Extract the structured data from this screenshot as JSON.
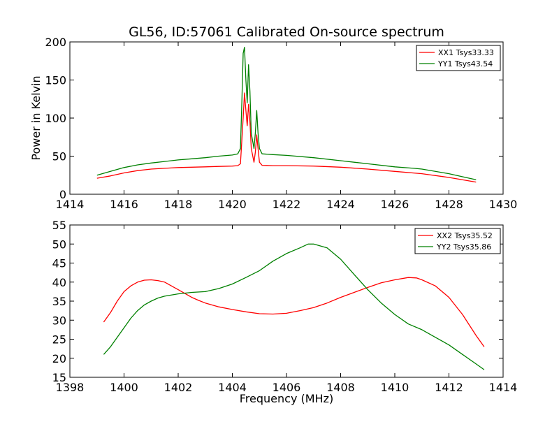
{
  "chart_data": [
    {
      "type": "line",
      "title": "GL56, ID:57061 Calibrated On-source spectrum",
      "xlabel": "",
      "ylabel": "Power in Kelvin",
      "xlim": [
        1414,
        1430
      ],
      "ylim": [
        0,
        200
      ],
      "xticks": [
        1414,
        1416,
        1418,
        1420,
        1422,
        1424,
        1426,
        1428,
        1430
      ],
      "yticks": [
        0,
        50,
        100,
        150,
        200
      ],
      "grid": false,
      "legend": "top-right",
      "colors": {
        "series1": "#ff0000",
        "series2": "#008000"
      },
      "series": [
        {
          "name": "XX1 Tsys33.33",
          "color": "#ff0000",
          "points": [
            [
              1415.0,
              21
            ],
            [
              1415.5,
              24
            ],
            [
              1416.0,
              28
            ],
            [
              1416.5,
              31
            ],
            [
              1417.0,
              33
            ],
            [
              1417.5,
              34
            ],
            [
              1418.0,
              35
            ],
            [
              1418.5,
              35.5
            ],
            [
              1419.0,
              36
            ],
            [
              1419.5,
              36.5
            ],
            [
              1420.0,
              37
            ],
            [
              1420.2,
              37.5
            ],
            [
              1420.3,
              40
            ],
            [
              1420.4,
              100
            ],
            [
              1420.45,
              133
            ],
            [
              1420.5,
              110
            ],
            [
              1420.55,
              90
            ],
            [
              1420.6,
              118
            ],
            [
              1420.65,
              95
            ],
            [
              1420.7,
              60
            ],
            [
              1420.8,
              42
            ],
            [
              1420.85,
              55
            ],
            [
              1420.9,
              78
            ],
            [
              1420.95,
              60
            ],
            [
              1421.0,
              42
            ],
            [
              1421.1,
              38
            ],
            [
              1421.5,
              37.5
            ],
            [
              1422.0,
              37.5
            ],
            [
              1423.0,
              37
            ],
            [
              1424.0,
              35.5
            ],
            [
              1425.0,
              33
            ],
            [
              1426.0,
              30
            ],
            [
              1427.0,
              27
            ],
            [
              1428.0,
              22
            ],
            [
              1429.0,
              16
            ]
          ]
        },
        {
          "name": "YY1 Tsys43.54",
          "color": "#008000",
          "points": [
            [
              1415.0,
              25
            ],
            [
              1415.5,
              30
            ],
            [
              1416.0,
              35
            ],
            [
              1416.5,
              38.5
            ],
            [
              1417.0,
              41
            ],
            [
              1417.5,
              43
            ],
            [
              1418.0,
              45
            ],
            [
              1418.5,
              46.5
            ],
            [
              1419.0,
              48
            ],
            [
              1419.5,
              50
            ],
            [
              1420.0,
              51.5
            ],
            [
              1420.2,
              53
            ],
            [
              1420.3,
              60
            ],
            [
              1420.35,
              120
            ],
            [
              1420.4,
              185
            ],
            [
              1420.45,
              193
            ],
            [
              1420.5,
              150
            ],
            [
              1420.55,
              120
            ],
            [
              1420.6,
              170
            ],
            [
              1420.65,
              135
            ],
            [
              1420.7,
              80
            ],
            [
              1420.8,
              60
            ],
            [
              1420.85,
              80
            ],
            [
              1420.9,
              110
            ],
            [
              1420.95,
              80
            ],
            [
              1421.0,
              60
            ],
            [
              1421.1,
              53
            ],
            [
              1421.5,
              52
            ],
            [
              1422.0,
              51
            ],
            [
              1423.0,
              48
            ],
            [
              1424.0,
              44
            ],
            [
              1425.0,
              40
            ],
            [
              1426.0,
              36
            ],
            [
              1426.7,
              34
            ],
            [
              1427.0,
              33
            ],
            [
              1428.0,
              27
            ],
            [
              1429.0,
              19
            ]
          ]
        }
      ]
    },
    {
      "type": "line",
      "title": "",
      "xlabel": "Frequency (MHz)",
      "ylabel": "",
      "xlim": [
        1398,
        1414
      ],
      "ylim": [
        15,
        55
      ],
      "xticks": [
        1398,
        1400,
        1402,
        1404,
        1406,
        1408,
        1410,
        1412,
        1414
      ],
      "yticks": [
        15,
        20,
        25,
        30,
        35,
        40,
        45,
        50,
        55
      ],
      "grid": false,
      "legend": "top-right",
      "colors": {
        "series1": "#ff0000",
        "series2": "#008000"
      },
      "series": [
        {
          "name": "XX2 Tsys35.52",
          "color": "#ff0000",
          "points": [
            [
              1399.25,
              29.5
            ],
            [
              1399.5,
              32
            ],
            [
              1399.75,
              35
            ],
            [
              1400.0,
              37.5
            ],
            [
              1400.25,
              39
            ],
            [
              1400.5,
              40
            ],
            [
              1400.75,
              40.5
            ],
            [
              1401.0,
              40.6
            ],
            [
              1401.25,
              40.4
            ],
            [
              1401.5,
              40
            ],
            [
              1401.75,
              39
            ],
            [
              1402.0,
              38
            ],
            [
              1402.25,
              37
            ],
            [
              1402.5,
              36
            ],
            [
              1402.75,
              35.2
            ],
            [
              1403.0,
              34.5
            ],
            [
              1403.5,
              33.5
            ],
            [
              1404.0,
              32.8
            ],
            [
              1404.5,
              32.2
            ],
            [
              1405.0,
              31.7
            ],
            [
              1405.5,
              31.6
            ],
            [
              1406.0,
              31.8
            ],
            [
              1406.5,
              32.5
            ],
            [
              1407.0,
              33.3
            ],
            [
              1407.5,
              34.5
            ],
            [
              1408.0,
              36
            ],
            [
              1408.5,
              37.3
            ],
            [
              1409.0,
              38.6
            ],
            [
              1409.5,
              39.8
            ],
            [
              1410.0,
              40.6
            ],
            [
              1410.5,
              41.2
            ],
            [
              1410.8,
              41.1
            ],
            [
              1411.0,
              40.6
            ],
            [
              1411.5,
              39
            ],
            [
              1412.0,
              36
            ],
            [
              1412.5,
              31.5
            ],
            [
              1413.0,
              26
            ],
            [
              1413.3,
              23
            ]
          ]
        },
        {
          "name": "YY2 Tsys35.86",
          "color": "#008000",
          "points": [
            [
              1399.25,
              21
            ],
            [
              1399.5,
              23
            ],
            [
              1399.75,
              25.5
            ],
            [
              1400.0,
              28
            ],
            [
              1400.25,
              30.5
            ],
            [
              1400.5,
              32.5
            ],
            [
              1400.75,
              34
            ],
            [
              1401.0,
              35
            ],
            [
              1401.25,
              35.8
            ],
            [
              1401.5,
              36.3
            ],
            [
              1402.0,
              36.9
            ],
            [
              1402.5,
              37.3
            ],
            [
              1403.0,
              37.5
            ],
            [
              1403.5,
              38.3
            ],
            [
              1404.0,
              39.5
            ],
            [
              1404.5,
              41.2
            ],
            [
              1405.0,
              43
            ],
            [
              1405.5,
              45.5
            ],
            [
              1406.0,
              47.5
            ],
            [
              1406.5,
              49
            ],
            [
              1406.8,
              50
            ],
            [
              1407.0,
              50
            ],
            [
              1407.5,
              49
            ],
            [
              1408.0,
              46
            ],
            [
              1408.5,
              42
            ],
            [
              1409.0,
              38
            ],
            [
              1409.5,
              34.5
            ],
            [
              1410.0,
              31.5
            ],
            [
              1410.5,
              29
            ],
            [
              1411.0,
              27.5
            ],
            [
              1411.5,
              25.5
            ],
            [
              1412.0,
              23.5
            ],
            [
              1412.5,
              21
            ],
            [
              1413.0,
              18.5
            ],
            [
              1413.3,
              17
            ]
          ]
        }
      ]
    }
  ]
}
